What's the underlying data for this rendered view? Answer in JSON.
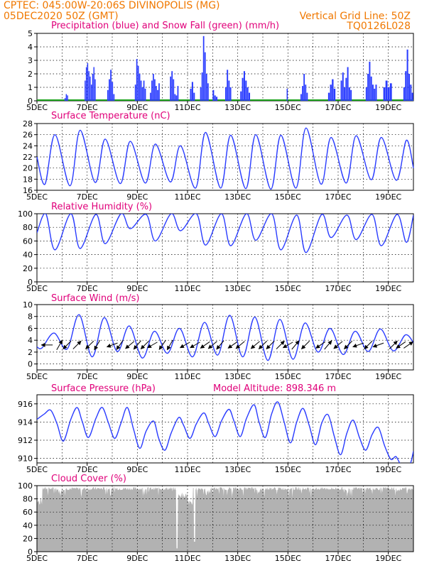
{
  "header": {
    "line1_left": "CPTEC:   045:00W-20:06S   DIVINOPOLIS (MG)",
    "line2_left": "05DEC2020 50Z (GMT)",
    "line2_right": "Vertical Grid Line: 50Z",
    "line3_right": "TQ0126L028"
  },
  "colors": {
    "header": "#f07800",
    "title": "#e0007a",
    "series": "#2a3cff",
    "snow": "#1aa01a",
    "cloud": "#b2b2b2"
  },
  "chart_data": [
    {
      "type": "bar",
      "title": "Precipitation (blue) and Snow Fall (green) (mm/h)",
      "ylim": [
        0,
        5
      ],
      "yticks": [
        0,
        1,
        2,
        3,
        4,
        5
      ],
      "x_tick_labels": [
        "5DEC",
        "7DEC",
        "9DEC",
        "11DEC",
        "13DEC",
        "15DEC",
        "17DEC",
        "19DEC"
      ],
      "x_range_days": [
        5,
        20
      ],
      "bursts": [
        {
          "day": 6.1,
          "width": 0.15,
          "values": [
            0.2,
            0.5,
            0.4
          ]
        },
        {
          "day": 6.9,
          "width": 0.45,
          "values": [
            1.5,
            2.5,
            2.8,
            2.2,
            1.8,
            1.2,
            2.0,
            2.5,
            1.6
          ]
        },
        {
          "day": 7.8,
          "width": 0.3,
          "values": [
            0.8,
            1.6,
            2.3,
            1.4,
            0.5
          ]
        },
        {
          "day": 8.9,
          "width": 0.45,
          "values": [
            1.2,
            3.1,
            2.6,
            2.0,
            1.5,
            1.0,
            1.5,
            0.9
          ]
        },
        {
          "day": 9.5,
          "width": 0.4,
          "values": [
            0.6,
            1.5,
            2.0,
            1.6,
            1.1,
            0.8,
            1.3
          ]
        },
        {
          "day": 10.3,
          "width": 0.35,
          "values": [
            1.8,
            2.2,
            1.6,
            0.5,
            0.4,
            1.1
          ]
        },
        {
          "day": 11.1,
          "width": 0.2,
          "values": [
            0.9,
            1.4,
            0.6
          ]
        },
        {
          "day": 11.5,
          "width": 0.35,
          "values": [
            1.0,
            2.1,
            4.8,
            3.6,
            2.0,
            1.3
          ]
        },
        {
          "day": 12.0,
          "width": 0.2,
          "values": [
            0.8,
            0.4,
            0.3
          ]
        },
        {
          "day": 12.5,
          "width": 0.25,
          "values": [
            1.0,
            2.3,
            1.5,
            1.0
          ]
        },
        {
          "day": 13.1,
          "width": 0.4,
          "values": [
            0.7,
            1.7,
            2.2,
            1.5,
            1.0,
            0.6
          ]
        },
        {
          "day": 14.95,
          "width": 0.05,
          "values": [
            0.9
          ]
        },
        {
          "day": 15.5,
          "width": 0.3,
          "values": [
            0.5,
            1.1,
            2.0,
            1.2,
            0.6
          ]
        },
        {
          "day": 16.6,
          "width": 0.3,
          "values": [
            0.6,
            1.2,
            1.6,
            0.9
          ]
        },
        {
          "day": 17.1,
          "width": 0.45,
          "values": [
            1.5,
            2.1,
            1.0,
            1.7,
            2.5,
            1.0,
            0.8
          ]
        },
        {
          "day": 18.1,
          "width": 0.45,
          "values": [
            1.0,
            2.0,
            2.9,
            1.8,
            1.2,
            0.9,
            1.2
          ]
        },
        {
          "day": 18.8,
          "width": 0.35,
          "values": [
            1.0,
            1.5,
            1.0,
            1.3
          ]
        },
        {
          "day": 19.6,
          "width": 0.4,
          "values": [
            1.0,
            2.2,
            3.8,
            2.0,
            1.2,
            0.6
          ]
        }
      ]
    },
    {
      "type": "line",
      "title": "Surface Temperature (nC)",
      "ylim": [
        16,
        28
      ],
      "yticks": [
        16,
        18,
        20,
        22,
        24,
        26,
        28
      ],
      "x_tick_labels": [
        "5DEC",
        "7DEC",
        "9DEC",
        "11DEC",
        "13DEC",
        "15DEC",
        "17DEC",
        "19DEC"
      ],
      "daily_max": [
        26.0,
        26.8,
        25.2,
        24.8,
        24.3,
        24.0,
        26.4,
        25.9,
        26.0,
        25.9,
        27.2,
        25.5,
        25.8,
        25.5,
        25.0
      ],
      "daily_min": [
        17.1,
        16.8,
        17.4,
        17.2,
        17.3,
        17.5,
        16.4,
        16.4,
        16.3,
        16.2,
        16.4,
        17.1,
        17.3,
        17.9,
        17.8
      ],
      "start": 22.0,
      "end": 20.0
    },
    {
      "type": "line",
      "title": "Relative Humidity (%)",
      "ylim": [
        0,
        100
      ],
      "yticks": [
        0,
        20,
        40,
        60,
        80,
        100
      ],
      "x_tick_labels": [
        "5DEC",
        "7DEC",
        "9DEC",
        "11DEC",
        "13DEC",
        "15DEC",
        "17DEC",
        "19DEC"
      ],
      "daily_max": [
        100,
        100,
        99,
        100,
        99,
        100,
        100,
        100,
        100,
        100,
        98,
        99,
        98,
        99,
        99
      ],
      "daily_min": [
        47,
        49,
        56,
        78,
        60,
        75,
        54,
        53,
        61,
        47,
        43,
        65,
        62,
        53,
        58
      ],
      "start": 72,
      "end": 98
    },
    {
      "type": "line",
      "title": "Surface Wind (m/s)",
      "ylim": [
        -1,
        10
      ],
      "yticks": [
        0,
        2,
        4,
        6,
        8,
        10
      ],
      "x_tick_labels": [
        "5DEC",
        "7DEC",
        "9DEC",
        "11DEC",
        "13DEC",
        "15DEC",
        "17DEC",
        "19DEC"
      ],
      "peaks": [
        5.2,
        8.3,
        7.8,
        6.4,
        5.5,
        6.0,
        7.0,
        8.2,
        7.9,
        7.5,
        6.9,
        6.0,
        5.5,
        5.9,
        4.9
      ],
      "troughs": [
        2.7,
        2.5,
        1.2,
        2.1,
        1.0,
        1.8,
        1.2,
        1.5,
        1.2,
        0.6,
        0.8,
        2.0,
        1.6,
        2.1,
        2.2
      ],
      "arrow_days": [
        5.4,
        5.9,
        6.2,
        6.6,
        7.1,
        7.4,
        8.0,
        8.3,
        8.7,
        9.0,
        9.3,
        9.6,
        10.0,
        10.3,
        10.9,
        11.3,
        11.7,
        12.0,
        12.3,
        12.8,
        13.1,
        13.7,
        14.0,
        14.3,
        14.7,
        15.0,
        15.3,
        15.7,
        16.3,
        16.6,
        17.0,
        17.4,
        17.8,
        18.2,
        18.6,
        19.2,
        19.5,
        19.8
      ],
      "arrow_dirs_deg": [
        180,
        60,
        225,
        45,
        225,
        240,
        200,
        235,
        220,
        230,
        225,
        210,
        235,
        240,
        210,
        210,
        215,
        220,
        230,
        215,
        220,
        220,
        225,
        225,
        45,
        210,
        50,
        225,
        215,
        50,
        220,
        225,
        200,
        225,
        200,
        45,
        215,
        35
      ]
    },
    {
      "type": "line",
      "title": "Surface Pressure (hPa)",
      "annotation": "Model Altitude: 898.346 m",
      "ylim": [
        909.5,
        917
      ],
      "yticks": [
        910,
        912,
        914,
        916
      ],
      "x_tick_labels": [
        "5DEC",
        "7DEC",
        "9DEC",
        "11DEC",
        "13DEC",
        "15DEC",
        "17DEC",
        "19DEC"
      ],
      "points": [
        [
          5.0,
          914.3
        ],
        [
          5.3,
          914.9
        ],
        [
          5.55,
          915.3
        ],
        [
          5.8,
          913.8
        ],
        [
          6.05,
          911.9
        ],
        [
          6.35,
          914.3
        ],
        [
          6.6,
          915.6
        ],
        [
          6.8,
          914.1
        ],
        [
          7.05,
          912.3
        ],
        [
          7.35,
          914.4
        ],
        [
          7.6,
          915.6
        ],
        [
          7.85,
          913.9
        ],
        [
          8.1,
          912.2
        ],
        [
          8.35,
          913.9
        ],
        [
          8.6,
          915.6
        ],
        [
          8.85,
          913.2
        ],
        [
          9.1,
          911.1
        ],
        [
          9.35,
          913.0
        ],
        [
          9.65,
          914.1
        ],
        [
          9.85,
          912.2
        ],
        [
          10.1,
          910.9
        ],
        [
          10.35,
          912.8
        ],
        [
          10.65,
          914.5
        ],
        [
          10.85,
          913.6
        ],
        [
          11.1,
          912.2
        ],
        [
          11.35,
          913.8
        ],
        [
          11.65,
          915.0
        ],
        [
          11.85,
          913.8
        ],
        [
          12.1,
          912.4
        ],
        [
          12.35,
          914.1
        ],
        [
          12.65,
          915.4
        ],
        [
          12.85,
          914.1
        ],
        [
          13.1,
          912.4
        ],
        [
          13.35,
          914.4
        ],
        [
          13.65,
          915.9
        ],
        [
          13.85,
          914.0
        ],
        [
          14.1,
          912.3
        ],
        [
          14.35,
          914.9
        ],
        [
          14.6,
          916.2
        ],
        [
          14.85,
          914.0
        ],
        [
          15.1,
          911.7
        ],
        [
          15.35,
          914.0
        ],
        [
          15.6,
          915.5
        ],
        [
          15.85,
          913.6
        ],
        [
          16.1,
          911.5
        ],
        [
          16.35,
          913.9
        ],
        [
          16.6,
          914.8
        ],
        [
          16.85,
          912.4
        ],
        [
          17.1,
          910.4
        ],
        [
          17.35,
          912.8
        ],
        [
          17.6,
          914.2
        ],
        [
          17.85,
          912.3
        ],
        [
          18.1,
          910.9
        ],
        [
          18.35,
          912.6
        ],
        [
          18.6,
          913.4
        ],
        [
          18.85,
          911.4
        ],
        [
          19.1,
          909.9
        ],
        [
          19.3,
          910.2
        ],
        [
          19.5,
          909.3
        ],
        [
          19.75,
          908.9
        ],
        [
          19.9,
          909.6
        ],
        [
          20.0,
          910.8
        ]
      ]
    },
    {
      "type": "area",
      "title": "Cloud Cover (%)",
      "ylim": [
        0,
        100
      ],
      "yticks": [
        0,
        20,
        40,
        60,
        80,
        100
      ],
      "x_tick_labels": [
        "5DEC",
        "7DEC",
        "9DEC",
        "11DEC",
        "13DEC",
        "15DEC",
        "17DEC",
        "19DEC"
      ],
      "base_level": 93,
      "gaps": [
        [
          10.55,
          10.6,
          5
        ],
        [
          11.25,
          11.3,
          15
        ]
      ],
      "dips": [
        [
          5.0,
          5.2,
          70
        ],
        [
          10.6,
          11.0,
          80
        ],
        [
          11.0,
          11.2,
          70
        ],
        [
          5.8,
          6.0,
          88
        ],
        [
          11.7,
          11.9,
          85
        ],
        [
          13.8,
          14.0,
          88
        ],
        [
          17.2,
          17.4,
          88
        ],
        [
          19.2,
          19.5,
          90
        ]
      ]
    }
  ]
}
